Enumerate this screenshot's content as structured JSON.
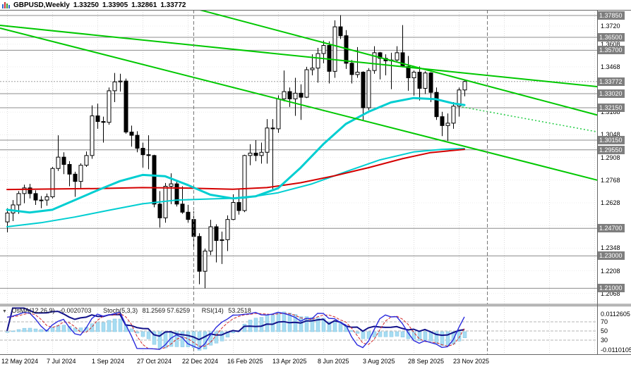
{
  "header": {
    "symbol_period": "GBPUSD,Weekly",
    "open": "1.33250",
    "high": "1.33905",
    "low": "1.32861",
    "close": "1.33772"
  },
  "indicators": {
    "collapse_icon": "▼",
    "osma_name": "OsMA(12,26,9)",
    "osma_value": "-0.0020703",
    "stoch_name": "Stoch(5,3,3)",
    "stoch_value": "81.2569 57.6259",
    "rsi_name": "RSI(14)",
    "rsi_value": "53.2518",
    "params": {
      "osma": [
        12,
        26,
        9
      ],
      "stoch": [
        5,
        3,
        3
      ],
      "rsi": 14
    }
  },
  "colors": {
    "background": "#ffffff",
    "bull": "#ffffff",
    "bear": "#000000",
    "candle_outline": "#000000",
    "trendline_green": "#00c800",
    "ma_red": "#d40000",
    "ma_cyan": "#00ced1",
    "level_gray": "#8c8c8c",
    "badge_bg": "#7e7e7e",
    "osma_bar": "#a7dcf2",
    "osma_bar_border": "#7fc2e0",
    "stoch_main": "#2b2bdd",
    "stoch_signal": "#d22b2b",
    "rsi": "#11118a"
  },
  "chart_data": {
    "type": "candlestick",
    "symbol": "GBPUSD",
    "timeframe": "Weekly",
    "ylim": [
      1.204,
      1.382
    ],
    "x_axis_labels": [
      {
        "text": "12 May 2024",
        "i": 0
      },
      {
        "text": "7 Jul 2024",
        "i": 8
      },
      {
        "text": "1 Sep 2024",
        "i": 16
      },
      {
        "text": "27 Oct 2024",
        "i": 24
      },
      {
        "text": "22 Dec 2024",
        "i": 32
      },
      {
        "text": "16 Feb 2025",
        "i": 40
      },
      {
        "text": "13 Apr 2025",
        "i": 48
      },
      {
        "text": "8 Jun 2025",
        "i": 56
      },
      {
        "text": "3 Aug 2025",
        "i": 64
      },
      {
        "text": "28 Sep 2025",
        "i": 72
      },
      {
        "text": "23 Nov 2025",
        "i": 80
      }
    ],
    "extra_grid_indices": [
      88,
      96,
      104
    ],
    "candles": [
      [
        1.251,
        1.2595,
        1.2445,
        1.2565
      ],
      [
        1.2565,
        1.2645,
        1.2515,
        1.2615
      ],
      [
        1.2615,
        1.27,
        1.256,
        1.2685
      ],
      [
        1.2685,
        1.274,
        1.2625,
        1.272
      ],
      [
        1.272,
        1.2745,
        1.2655,
        1.2685
      ],
      [
        1.2685,
        1.2705,
        1.2615,
        1.2645
      ],
      [
        1.2645,
        1.267,
        1.2595,
        1.2645
      ],
      [
        1.2645,
        1.2685,
        1.261,
        1.2665
      ],
      [
        1.2665,
        1.285,
        1.2655,
        1.284
      ],
      [
        1.284,
        1.3045,
        1.2825,
        1.291
      ],
      [
        1.291,
        1.294,
        1.2805,
        1.2865
      ],
      [
        1.2865,
        1.2885,
        1.273,
        1.2805
      ],
      [
        1.2805,
        1.282,
        1.2665,
        1.276
      ],
      [
        1.276,
        1.2872,
        1.272,
        1.286
      ],
      [
        1.286,
        1.2945,
        1.285,
        1.292
      ],
      [
        1.292,
        1.323,
        1.29,
        1.3165
      ],
      [
        1.3165,
        1.324,
        1.3085,
        1.313
      ],
      [
        1.313,
        1.316,
        1.3,
        1.3125
      ],
      [
        1.3125,
        1.334,
        1.311,
        1.332
      ],
      [
        1.332,
        1.343,
        1.325,
        1.3375
      ],
      [
        1.3375,
        1.3425,
        1.3315,
        1.338
      ],
      [
        1.338,
        1.3395,
        1.3055,
        1.3065
      ],
      [
        1.3065,
        1.3105,
        1.2975,
        1.3045
      ],
      [
        1.3045,
        1.307,
        1.294,
        1.2965
      ],
      [
        1.2965,
        1.3,
        1.2845,
        1.2925
      ],
      [
        1.2925,
        1.3045,
        1.2835,
        1.292
      ],
      [
        1.292,
        1.2925,
        1.26,
        1.262
      ],
      [
        1.262,
        1.27,
        1.2475,
        1.2535
      ],
      [
        1.2535,
        1.275,
        1.2505,
        1.273
      ],
      [
        1.273,
        1.281,
        1.262,
        1.2745
      ],
      [
        1.2745,
        1.277,
        1.2605,
        1.262
      ],
      [
        1.262,
        1.273,
        1.256,
        1.257
      ],
      [
        1.257,
        1.2615,
        1.2505,
        1.2525
      ],
      [
        1.2525,
        1.2575,
        1.235,
        1.242
      ],
      [
        1.242,
        1.244,
        1.2125,
        1.2205
      ],
      [
        1.2205,
        1.2345,
        1.21,
        1.233
      ],
      [
        1.233,
        1.2523,
        1.2305,
        1.248
      ],
      [
        1.248,
        1.2495,
        1.226,
        1.2395
      ],
      [
        1.2395,
        1.245,
        1.225,
        1.24
      ],
      [
        1.24,
        1.255,
        1.233,
        1.2525
      ],
      [
        1.2525,
        1.268,
        1.252,
        1.263
      ],
      [
        1.263,
        1.271,
        1.2555,
        1.258
      ],
      [
        1.258,
        1.2925,
        1.257,
        1.292
      ],
      [
        1.292,
        1.299,
        1.286,
        1.2935
      ],
      [
        1.2935,
        1.3015,
        1.2885,
        1.292
      ],
      [
        1.292,
        1.3,
        1.287,
        1.294
      ],
      [
        1.294,
        1.3145,
        1.287,
        1.309
      ],
      [
        1.309,
        1.3145,
        1.271,
        1.3085
      ],
      [
        1.3085,
        1.3292,
        1.306,
        1.327
      ],
      [
        1.327,
        1.3445,
        1.3255,
        1.3315
      ],
      [
        1.3315,
        1.334,
        1.322,
        1.327
      ],
      [
        1.327,
        1.34,
        1.3165,
        1.3305
      ],
      [
        1.3305,
        1.336,
        1.314,
        1.328
      ],
      [
        1.328,
        1.3468,
        1.3275,
        1.345
      ],
      [
        1.345,
        1.3545,
        1.3415,
        1.346
      ],
      [
        1.346,
        1.3585,
        1.337,
        1.355
      ],
      [
        1.355,
        1.363,
        1.349,
        1.36
      ],
      [
        1.36,
        1.3625,
        1.3365,
        1.344
      ],
      [
        1.344,
        1.3755,
        1.34,
        1.3715
      ],
      [
        1.3715,
        1.3787,
        1.364,
        1.366
      ],
      [
        1.366,
        1.3695,
        1.3455,
        1.349
      ],
      [
        1.349,
        1.351,
        1.3365,
        1.342
      ],
      [
        1.342,
        1.359,
        1.34,
        1.3435
      ],
      [
        1.3435,
        1.344,
        1.314,
        1.3215
      ],
      [
        1.3215,
        1.346,
        1.32,
        1.3445
      ],
      [
        1.3445,
        1.3595,
        1.3425,
        1.3555
      ],
      [
        1.3555,
        1.356,
        1.339,
        1.352
      ],
      [
        1.352,
        1.3545,
        1.3415,
        1.3505
      ],
      [
        1.3505,
        1.3555,
        1.333,
        1.351
      ],
      [
        1.351,
        1.3595,
        1.35,
        1.3555
      ],
      [
        1.3555,
        1.3726,
        1.3465,
        1.347
      ],
      [
        1.347,
        1.3535,
        1.332,
        1.34
      ],
      [
        1.34,
        1.3445,
        1.329,
        1.3435
      ],
      [
        1.3435,
        1.347,
        1.326,
        1.3335
      ],
      [
        1.3335,
        1.344,
        1.33,
        1.343
      ],
      [
        1.343,
        1.3435,
        1.325,
        1.331
      ],
      [
        1.331,
        1.334,
        1.314,
        1.316
      ],
      [
        1.316,
        1.319,
        1.304,
        1.3105
      ],
      [
        1.3105,
        1.318,
        1.301,
        1.312
      ],
      [
        1.312,
        1.325,
        1.3085,
        1.3225
      ],
      [
        1.3225,
        1.334,
        1.316,
        1.3325
      ],
      [
        1.3325,
        1.33905,
        1.32861,
        1.33772
      ]
    ],
    "price_axis": {
      "boxed_levels": [
        {
          "text": "1.37850",
          "price": 1.3785
        },
        {
          "text": "1.36500",
          "price": 1.365
        },
        {
          "text": "1.35700",
          "price": 1.357
        },
        {
          "text": "1.33020",
          "price": 1.3302
        },
        {
          "text": "1.32150",
          "price": 1.3215
        },
        {
          "text": "1.30150",
          "price": 1.3015
        },
        {
          "text": "1.29550",
          "price": 1.2955
        },
        {
          "text": "1.24700",
          "price": 1.247
        },
        {
          "text": "1.23000",
          "price": 1.23
        },
        {
          "text": "1.21000",
          "price": 1.21
        }
      ],
      "plain_ticks": [
        {
          "text": "1.3720",
          "price": 1.372
        },
        {
          "text": "1.3608",
          "price": 1.3608
        },
        {
          "text": "1.3468",
          "price": 1.3468
        },
        {
          "text": "1.3188",
          "price": 1.3188
        },
        {
          "text": "1.3048",
          "price": 1.3048
        },
        {
          "text": "1.2908",
          "price": 1.2908
        },
        {
          "text": "1.2768",
          "price": 1.2768
        },
        {
          "text": "1.2628",
          "price": 1.2628
        },
        {
          "text": "1.2348",
          "price": 1.2348
        },
        {
          "text": "1.2208",
          "price": 1.2208
        },
        {
          "text": "1.2068",
          "price": 1.2068
        }
      ],
      "current": {
        "text": "1.33772",
        "price": 1.33772
      }
    },
    "grid_prices": [
      1.372,
      1.3608,
      1.3468,
      1.3328,
      1.3188,
      1.3048,
      1.2908,
      1.2768,
      1.2628,
      1.2488,
      1.2348,
      1.2208,
      1.2068
    ],
    "overlay_lines": [
      {
        "name": "ma-cyan-slow",
        "color": "#00ced1",
        "width": 2,
        "points": [
          [
            0,
            1.248
          ],
          [
            6,
            1.2505
          ],
          [
            12,
            1.254
          ],
          [
            18,
            1.2582
          ],
          [
            24,
            1.2622
          ],
          [
            30,
            1.2645
          ],
          [
            36,
            1.2652
          ],
          [
            42,
            1.2658
          ],
          [
            48,
            1.269
          ],
          [
            54,
            1.2745
          ],
          [
            60,
            1.282
          ],
          [
            66,
            1.2893
          ],
          [
            72,
            1.2942
          ],
          [
            77,
            1.2958
          ],
          [
            81,
            1.2963
          ]
        ]
      },
      {
        "name": "ma-red",
        "color": "#d40000",
        "width": 2,
        "points": [
          [
            0,
            1.271
          ],
          [
            8,
            1.2713
          ],
          [
            16,
            1.2716
          ],
          [
            24,
            1.2722
          ],
          [
            32,
            1.2719
          ],
          [
            40,
            1.2712
          ],
          [
            46,
            1.2722
          ],
          [
            52,
            1.2752
          ],
          [
            58,
            1.2795
          ],
          [
            64,
            1.2845
          ],
          [
            70,
            1.29
          ],
          [
            75,
            1.2938
          ],
          [
            81,
            1.2958
          ]
        ]
      },
      {
        "name": "ma-cyan-fast",
        "color": "#00ced1",
        "width": 3,
        "points": [
          [
            0,
            1.2585
          ],
          [
            4,
            1.2568
          ],
          [
            8,
            1.2585
          ],
          [
            12,
            1.2645
          ],
          [
            16,
            1.2705
          ],
          [
            20,
            1.2762
          ],
          [
            24,
            1.28
          ],
          [
            28,
            1.2792
          ],
          [
            32,
            1.2738
          ],
          [
            36,
            1.2678
          ],
          [
            40,
            1.2655
          ],
          [
            44,
            1.2668
          ],
          [
            48,
            1.2718
          ],
          [
            52,
            1.2845
          ],
          [
            56,
            1.299
          ],
          [
            60,
            1.3115
          ],
          [
            64,
            1.319
          ],
          [
            68,
            1.3248
          ],
          [
            72,
            1.3275
          ],
          [
            76,
            1.3268
          ],
          [
            79,
            1.3242
          ],
          [
            81,
            1.3232
          ]
        ]
      }
    ],
    "trendlines": [
      {
        "name": "descending-trendline-upper",
        "color": "#00c800",
        "style": "solid",
        "width": 2,
        "i1": -1.25,
        "p1": 1.3724,
        "i2": 110.5,
        "p2": 1.3324
      },
      {
        "name": "descending-trendline-mid",
        "color": "#00c800",
        "style": "solid",
        "width": 2,
        "i1": 27.5,
        "p1": 1.3881,
        "i2": 110.5,
        "p2": 1.3115
      },
      {
        "name": "descending-trendline-lower",
        "color": "#00c800",
        "style": "solid",
        "width": 2,
        "i1": -1.25,
        "p1": 1.3707,
        "i2": 110.5,
        "p2": 1.2715
      },
      {
        "name": "descending-trendline-dotted",
        "color": "#22cc44",
        "style": "dotted",
        "width": 1.5,
        "i1": 80.6,
        "p1": 1.322,
        "i2": 110.5,
        "p2": 1.3028
      }
    ],
    "separators": [
      {
        "i": 33
      },
      {
        "i": 85
      }
    ],
    "sub_axis": {
      "max_label": "0.0112605",
      "min_label": "-0.0110105",
      "levels": [
        {
          "text": "70",
          "value": 70
        },
        {
          "text": "50",
          "value": 50
        },
        {
          "text": "30",
          "value": 30
        }
      ]
    }
  }
}
